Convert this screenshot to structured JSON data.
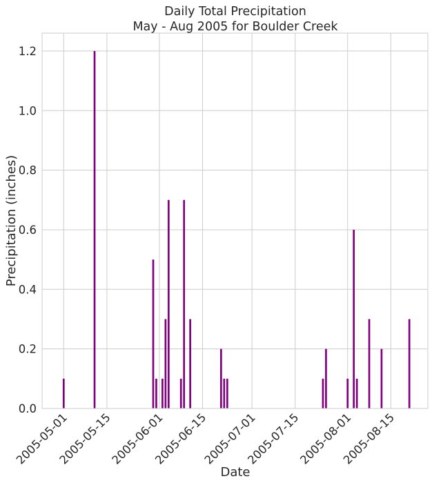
{
  "chart_data": {
    "type": "bar",
    "title": [
      "Daily Total Precipitation",
      "May - Aug 2005 for Boulder Creek"
    ],
    "xlabel": "Date",
    "ylabel": "Precipitation (inches)",
    "ylim": [
      0,
      1.26
    ],
    "xlim": [
      "2005-04-24",
      "2005-08-27"
    ],
    "grid": true,
    "bar_color": "#800080",
    "yticks": [
      {
        "value": 0.0,
        "label": "0.0"
      },
      {
        "value": 0.2,
        "label": "0.2"
      },
      {
        "value": 0.4,
        "label": "0.4"
      },
      {
        "value": 0.6,
        "label": "0.6"
      },
      {
        "value": 0.8,
        "label": "0.8"
      },
      {
        "value": 1.0,
        "label": "1.0"
      },
      {
        "value": 1.2,
        "label": "1.2"
      }
    ],
    "xticks": [
      {
        "date": "2005-05-01",
        "label": "2005-05-01"
      },
      {
        "date": "2005-05-15",
        "label": "2005-05-15"
      },
      {
        "date": "2005-06-01",
        "label": "2005-06-01"
      },
      {
        "date": "2005-06-15",
        "label": "2005-06-15"
      },
      {
        "date": "2005-07-01",
        "label": "2005-07-01"
      },
      {
        "date": "2005-07-15",
        "label": "2005-07-15"
      },
      {
        "date": "2005-08-01",
        "label": "2005-08-01"
      },
      {
        "date": "2005-08-15",
        "label": "2005-08-15"
      }
    ],
    "series": [
      {
        "name": "Daily Total Precipitation",
        "points": [
          {
            "date": "2005-05-01",
            "value": 0.1
          },
          {
            "date": "2005-05-11",
            "value": 1.2
          },
          {
            "date": "2005-05-30",
            "value": 0.5
          },
          {
            "date": "2005-05-31",
            "value": 0.1
          },
          {
            "date": "2005-06-02",
            "value": 0.1
          },
          {
            "date": "2005-06-03",
            "value": 0.3
          },
          {
            "date": "2005-06-04",
            "value": 0.7
          },
          {
            "date": "2005-06-08",
            "value": 0.1
          },
          {
            "date": "2005-06-09",
            "value": 0.7
          },
          {
            "date": "2005-06-11",
            "value": 0.3
          },
          {
            "date": "2005-06-21",
            "value": 0.2
          },
          {
            "date": "2005-06-22",
            "value": 0.1
          },
          {
            "date": "2005-06-23",
            "value": 0.1
          },
          {
            "date": "2005-07-24",
            "value": 0.1
          },
          {
            "date": "2005-07-25",
            "value": 0.2
          },
          {
            "date": "2005-08-01",
            "value": 0.1
          },
          {
            "date": "2005-08-03",
            "value": 0.6
          },
          {
            "date": "2005-08-04",
            "value": 0.1
          },
          {
            "date": "2005-08-08",
            "value": 0.3
          },
          {
            "date": "2005-08-12",
            "value": 0.2
          },
          {
            "date": "2005-08-21",
            "value": 0.3
          }
        ]
      }
    ]
  }
}
